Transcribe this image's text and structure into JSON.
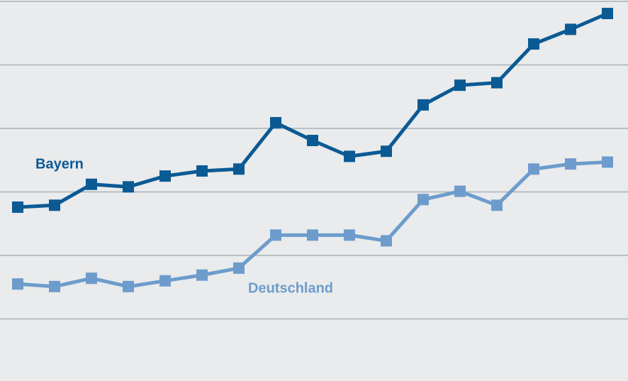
{
  "chart_data": {
    "type": "line",
    "categories": [
      null,
      null,
      null,
      null,
      null,
      null,
      null,
      null,
      null,
      null,
      null,
      null,
      null,
      null,
      null,
      null,
      null
    ],
    "series": [
      {
        "name": "Bayern",
        "color": "#0b5a94",
        "values": [
          2.76,
          2.79,
          3.12,
          3.08,
          3.25,
          3.33,
          3.36,
          4.09,
          3.81,
          3.56,
          3.64,
          4.37,
          4.68,
          4.72,
          5.33,
          5.56,
          5.81
        ]
      },
      {
        "name": "Deutschland",
        "color": "#6d9ccc",
        "values": [
          1.55,
          1.51,
          1.64,
          1.51,
          1.6,
          1.69,
          1.8,
          2.32,
          2.32,
          2.32,
          2.23,
          2.88,
          3.01,
          2.79,
          3.36,
          3.44,
          3.47
        ]
      }
    ],
    "ylim": [
      0,
      6
    ],
    "yticks": [
      1,
      2,
      3,
      4,
      5,
      6
    ],
    "grid": true
  }
}
